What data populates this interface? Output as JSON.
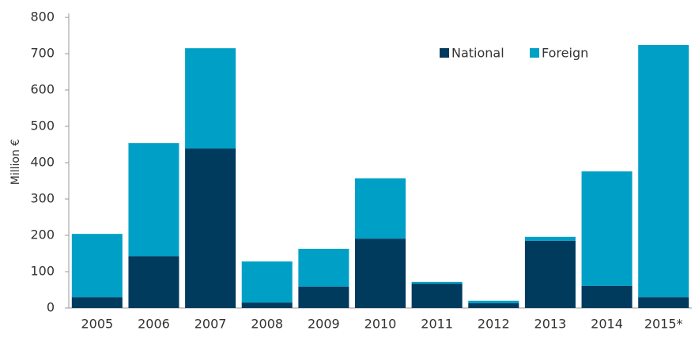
{
  "chart_data": {
    "type": "stacked_bar",
    "y_label": "Million €",
    "categories": [
      "2005",
      "2006",
      "2007",
      "2008",
      "2009",
      "2010",
      "2011",
      "2012",
      "2013",
      "2014",
      "2015*"
    ],
    "series": [
      {
        "name": "National",
        "color": "#003a5d",
        "values": [
          30,
          143,
          439,
          15,
          59,
          191,
          67,
          13,
          185,
          61,
          30
        ]
      },
      {
        "name": "Foreign",
        "color": "#00a0c6",
        "values": [
          174,
          311,
          276,
          113,
          104,
          166,
          5,
          7,
          11,
          315,
          694
        ]
      }
    ],
    "ylim": [
      0,
      800
    ],
    "yticks": [
      0,
      100,
      200,
      300,
      400,
      500,
      600,
      700,
      800
    ],
    "grid": false,
    "legend": "top-right"
  }
}
